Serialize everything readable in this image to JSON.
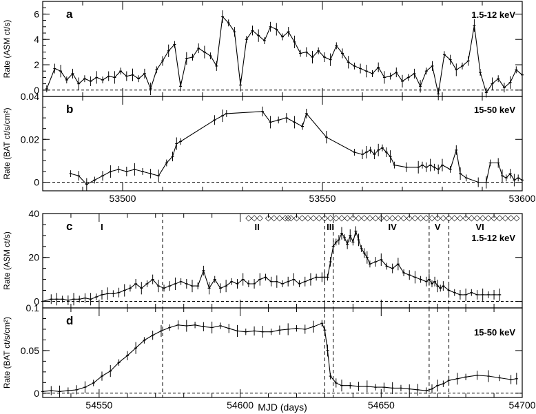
{
  "chart_data": [
    {
      "type": "line",
      "panel_label": "a",
      "band_label": "1.5-12 keV",
      "ylabel": "Rate (ASM ct/s)",
      "ylim": [
        -0.5,
        7
      ],
      "xlim": [
        53480,
        53600
      ],
      "yticks": [
        "0",
        "2",
        "4",
        "6"
      ],
      "xticks": [],
      "reference_line_y": 0,
      "series": [
        {
          "x": [
            53481,
            53483,
            53484.5,
            53486,
            53487.5,
            53489,
            53490.5,
            53492,
            53493.5,
            53495,
            53496.5,
            53498,
            53499.5,
            53501,
            53502.5,
            53504,
            53505.5,
            53507,
            53508.5,
            53510,
            53511.5,
            53513,
            53514.5,
            53516,
            53517.5,
            53519,
            53520.5,
            53522,
            53523.5,
            53525,
            53526.5,
            53528,
            53529.5,
            53531,
            53532.5,
            53534,
            53535.5,
            53537,
            53538.5,
            53540,
            53541.5,
            53543,
            53544.5,
            53546,
            53547.5,
            53549,
            53550.5,
            53552,
            53553.5,
            53555,
            53556.5,
            53558,
            53559.5,
            53561,
            53562.5,
            53564,
            53565.5,
            53567,
            53568.5,
            53570,
            53571.5,
            53573,
            53574.5,
            53576,
            53577.5,
            53579,
            53580.5,
            53582,
            53583.5,
            53585,
            53586.5,
            53588,
            53589.5,
            53591,
            53592.5,
            53594,
            53595.5,
            53597,
            53598.5,
            53600
          ],
          "y": [
            0.1,
            1.7,
            1.5,
            0.8,
            1.3,
            0.5,
            0.9,
            0.7,
            1.0,
            0.8,
            1.1,
            1.0,
            1.5,
            1.1,
            1.2,
            0.9,
            1.3,
            0.1,
            1.6,
            2.3,
            3.1,
            3.6,
            0.3,
            2.5,
            2.6,
            3.3,
            3.0,
            2.7,
            1.9,
            5.8,
            5.3,
            4.6,
            0.4,
            4.0,
            4.7,
            4.3,
            3.9,
            5.0,
            4.8,
            4.2,
            4.6,
            3.8,
            2.9,
            3.0,
            2.6,
            3.1,
            2.6,
            2.4,
            3.5,
            2.9,
            2.2,
            1.9,
            1.7,
            1.5,
            1.3,
            1.8,
            1.0,
            1.1,
            1.4,
            0.7,
            1.0,
            1.3,
            0.3,
            1.5,
            1.9,
            -0.3,
            2.8,
            2.4,
            1.6,
            1.9,
            2.3,
            5.1,
            1.4,
            -0.2,
            0.5,
            0.9,
            0.2,
            0.6,
            1.6,
            1.2
          ]
        }
      ]
    },
    {
      "type": "line",
      "panel_label": "b",
      "band_label": "15-50 keV",
      "ylabel": "Rate (BAT ct/s/cm²)",
      "ylim": [
        -0.004,
        0.04
      ],
      "xlim": [
        53480,
        53600
      ],
      "yticks": [
        "0",
        "0.02",
        "0.04"
      ],
      "xticks": [
        "53500",
        "53550",
        "53600"
      ],
      "reference_line_y": 0,
      "series": [
        {
          "x": [
            53487,
            53489,
            53491,
            53493,
            53495,
            53497,
            53499,
            53501,
            53503,
            53505,
            53507,
            53509,
            53511,
            53512.5,
            53513.5,
            53514.5,
            53523,
            53525,
            53526,
            53535,
            53537,
            53539,
            53541,
            53543,
            53545,
            53546,
            53551,
            53558,
            53560,
            53561,
            53562,
            53563,
            53564,
            53565,
            53566,
            53567,
            53568,
            53571,
            53574,
            53575,
            53576,
            53577,
            53578,
            53579,
            53580,
            53582,
            53583.5,
            53584.5,
            53586,
            53589,
            53591,
            53592,
            53594,
            53595,
            53596,
            53597,
            53598,
            53599,
            53600
          ],
          "y": [
            0.004,
            0.003,
            -0.001,
            0.001,
            0.003,
            0.005,
            0.006,
            0.005,
            0.006,
            0.005,
            0.004,
            0.003,
            0.009,
            0.012,
            0.018,
            0.019,
            0.029,
            0.031,
            0.032,
            0.033,
            0.028,
            0.029,
            0.03,
            0.028,
            0.026,
            0.032,
            0.021,
            0.014,
            0.013,
            0.014,
            0.015,
            0.013,
            0.015,
            0.016,
            0.014,
            0.012,
            0.008,
            0.007,
            0.007,
            0.008,
            0.007,
            0.008,
            0.007,
            0.006,
            0.008,
            0.006,
            0.015,
            0.004,
            0.002,
            0.0,
            0.0,
            0.009,
            0.009,
            0.003,
            0.002,
            0.004,
            0.001,
            0.002,
            0.001
          ]
        }
      ]
    },
    {
      "type": "line",
      "panel_label": "c",
      "band_label": "1.5-12 keV",
      "ylabel": "Rate (ASM ct/s)",
      "ylim": [
        -3,
        40
      ],
      "xlim": [
        54530,
        54700
      ],
      "yticks": [
        "0",
        "20",
        "40"
      ],
      "xticks": [],
      "reference_line_y": 0,
      "state_dividers_x": [
        54572.5,
        54630,
        54633,
        54667,
        54674
      ],
      "state_labels": [
        "I",
        "II",
        "III",
        "IV",
        "V",
        "VI"
      ],
      "state_label_x": [
        54551,
        54606,
        54632,
        54654,
        54670,
        54685
      ],
      "marker_row": {
        "symbol": "◇",
        "x": [
          54603,
          54605,
          54607,
          54610,
          54612,
          54614,
          54616,
          54617,
          54618,
          54620,
          54622,
          54624,
          54626,
          54628,
          54630,
          54632,
          54634,
          54636,
          54638,
          54640,
          54642,
          54644,
          54646,
          54648,
          54650,
          54652,
          54654,
          54656,
          54658,
          54660,
          54662,
          54664,
          54666,
          54668,
          54670,
          54672,
          54674,
          54676,
          54678,
          54680,
          54682,
          54684,
          54686,
          54688,
          54690,
          54692,
          54694,
          54696,
          54698
        ]
      },
      "series": [
        {
          "x": [
            54530,
            54533,
            54535,
            54537,
            54539,
            54541,
            54543,
            54545,
            54547,
            54549,
            54551,
            54553,
            54555,
            54557,
            54559,
            54561,
            54563,
            54565,
            54567,
            54569,
            54571,
            54573,
            54575,
            54577,
            54579,
            54581,
            54583,
            54585,
            54587,
            54589,
            54591,
            54593,
            54595,
            54597,
            54599,
            54601,
            54603,
            54605,
            54607,
            54609,
            54611,
            54613,
            54615,
            54617,
            54619,
            54621,
            54623,
            54625,
            54627,
            54629,
            54630,
            54631,
            54632,
            54633,
            54634,
            54635,
            54636,
            54637,
            54638,
            54639,
            54640,
            54641,
            54642,
            54643,
            54644,
            54645,
            54646,
            54648,
            54650,
            54652,
            54654,
            54656,
            54658,
            54660,
            54662,
            54664,
            54666,
            54667,
            54668,
            54669,
            54670,
            54671,
            54672,
            54674,
            54676,
            54678,
            54680,
            54682,
            54684,
            54686,
            54688,
            54690,
            54692
          ],
          "y": [
            0,
            1,
            1,
            1,
            0.5,
            1,
            1,
            1.5,
            1,
            2,
            3,
            3.5,
            3.5,
            4,
            5,
            6,
            8,
            6,
            8,
            10,
            7,
            6,
            7,
            8,
            9,
            8,
            7,
            7,
            14,
            6,
            10,
            6,
            7,
            9,
            8,
            10,
            8,
            8,
            10,
            11,
            9,
            9,
            8,
            9,
            10,
            8,
            9,
            10,
            11,
            11,
            11,
            11,
            18,
            25,
            27,
            28,
            31,
            29,
            26,
            30,
            27,
            32,
            28,
            24,
            22,
            20,
            17,
            18,
            19,
            16,
            15,
            17,
            13,
            12,
            11,
            10,
            9,
            10,
            8,
            9,
            7,
            6,
            7,
            5,
            4,
            3,
            3,
            4,
            3,
            3,
            3,
            3,
            3
          ]
        }
      ]
    },
    {
      "type": "line",
      "panel_label": "d",
      "band_label": "15-50 keV",
      "ylabel": "Rate (BAT ct/s/cm²)",
      "xlabel": "MJD (days)",
      "ylim": [
        -0.005,
        0.1
      ],
      "xlim": [
        54530,
        54700
      ],
      "yticks": [
        "0",
        "0.05",
        "0.1"
      ],
      "xticks": [
        "54550",
        "54600",
        "54650",
        "54700"
      ],
      "reference_line_y": 0,
      "state_dividers_x": [
        54572.5,
        54630,
        54633,
        54667,
        54674
      ],
      "series": [
        {
          "x": [
            54530,
            54533,
            54536,
            54539,
            54542,
            54545,
            54548,
            54551,
            54554,
            54557,
            54560,
            54563,
            54566,
            54569,
            54572,
            54575,
            54578,
            54581,
            54584,
            54587,
            54590,
            54593,
            54596,
            54599,
            54602,
            54605,
            54608,
            54611,
            54614,
            54617,
            54620,
            54623,
            54626,
            54629,
            54630,
            54631,
            54632,
            54634,
            54636,
            54639,
            54642,
            54645,
            54648,
            54651,
            54654,
            54657,
            54660,
            54663,
            54666,
            54668,
            54670,
            54672,
            54674,
            54677,
            54680,
            54684,
            54688,
            54692,
            54696,
            54698
          ],
          "y": [
            0.002,
            0.003,
            0.002,
            0.003,
            0.004,
            0.007,
            0.012,
            0.02,
            0.026,
            0.036,
            0.044,
            0.053,
            0.062,
            0.068,
            0.073,
            0.077,
            0.08,
            0.079,
            0.08,
            0.078,
            0.077,
            0.079,
            0.076,
            0.073,
            0.072,
            0.073,
            0.072,
            0.072,
            0.074,
            0.075,
            0.076,
            0.075,
            0.078,
            0.082,
            0.074,
            0.05,
            0.02,
            0.012,
            0.009,
            0.009,
            0.008,
            0.008,
            0.007,
            0.007,
            0.006,
            0.006,
            0.005,
            0.004,
            0.003,
            0.005,
            0.009,
            0.011,
            0.015,
            0.017,
            0.019,
            0.021,
            0.02,
            0.018,
            0.016,
            0.017
          ]
        }
      ]
    }
  ]
}
